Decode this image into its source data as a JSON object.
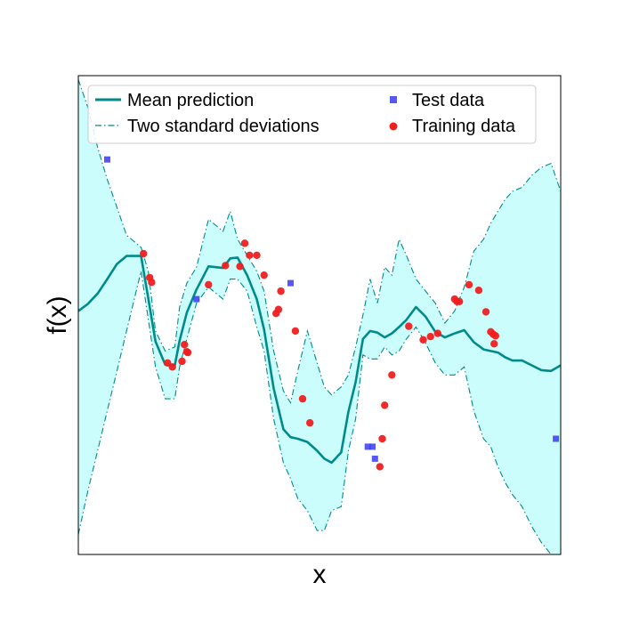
{
  "chart_data": {
    "type": "line",
    "title": "",
    "xlabel": "x",
    "ylabel": "f(x)",
    "xlim": [
      0,
      10
    ],
    "ylim": [
      -3,
      3
    ],
    "grid": false,
    "ticks_visible": false,
    "legend": {
      "placement": "top",
      "entries": [
        {
          "label": "Mean prediction",
          "style": "line",
          "color": "#008b8b"
        },
        {
          "label": "Two standard deviations",
          "style": "dashdot",
          "color": "#008b8b"
        },
        {
          "label": "Test data",
          "style": "square",
          "color": "#0000ff"
        },
        {
          "label": "Training data",
          "style": "circle",
          "color": "#ff0000"
        }
      ]
    },
    "colors": {
      "mean": "#008b8b",
      "band_fill": "#ccfdfd",
      "band_edge": "#008b8b",
      "test": "#3a3af5",
      "train": "#ef1f1f"
    },
    "series": [
      {
        "name": "Mean prediction",
        "x": [
          0.0,
          0.2,
          0.4,
          0.6,
          0.8,
          1.0,
          1.3,
          1.45,
          1.6,
          1.8,
          2.0,
          2.1,
          2.25,
          2.45,
          2.7,
          3.0,
          3.15,
          3.3,
          3.5,
          3.7,
          3.85,
          4.05,
          4.25,
          4.4,
          4.55,
          4.75,
          4.95,
          5.1,
          5.25,
          5.45,
          5.6,
          5.75,
          5.9,
          6.05,
          6.2,
          6.35,
          6.5,
          6.65,
          6.8,
          7.0,
          7.2,
          7.4,
          7.6,
          7.8,
          8.0,
          8.2,
          8.4,
          8.55,
          8.7,
          8.85,
          9.0,
          9.2,
          9.4,
          9.6,
          9.8,
          10.0
        ],
        "y": [
          0.05,
          0.14,
          0.27,
          0.45,
          0.64,
          0.74,
          0.74,
          0.21,
          -0.33,
          -0.62,
          -0.63,
          -0.32,
          0.03,
          0.32,
          0.61,
          0.59,
          0.71,
          0.72,
          0.5,
          0.2,
          -0.18,
          -0.92,
          -1.43,
          -1.53,
          -1.55,
          -1.59,
          -1.7,
          -1.8,
          -1.85,
          -1.72,
          -1.21,
          -0.84,
          -0.3,
          -0.2,
          -0.22,
          -0.28,
          -0.23,
          -0.15,
          -0.06,
          0.1,
          -0.02,
          -0.21,
          -0.28,
          -0.23,
          -0.19,
          -0.34,
          -0.43,
          -0.45,
          -0.47,
          -0.53,
          -0.57,
          -0.57,
          -0.63,
          -0.69,
          -0.7,
          -0.63
        ]
      },
      {
        "name": "Two standard deviations",
        "x": [
          0.0,
          0.2,
          0.4,
          0.6,
          0.8,
          1.0,
          1.3,
          1.45,
          1.6,
          1.8,
          2.0,
          2.1,
          2.25,
          2.45,
          2.7,
          3.0,
          3.15,
          3.3,
          3.5,
          3.7,
          3.85,
          4.05,
          4.25,
          4.4,
          4.55,
          4.75,
          4.95,
          5.1,
          5.25,
          5.45,
          5.6,
          5.75,
          5.9,
          6.05,
          6.2,
          6.35,
          6.5,
          6.65,
          6.8,
          7.0,
          7.2,
          7.4,
          7.6,
          7.8,
          8.0,
          8.2,
          8.4,
          8.55,
          8.7,
          8.85,
          9.0,
          9.2,
          9.4,
          9.6,
          9.8,
          10.0
        ],
        "upper": [
          2.95,
          2.6,
          2.1,
          1.7,
          1.35,
          1.0,
          0.85,
          0.55,
          -0.2,
          -0.45,
          -0.4,
          0.1,
          0.4,
          0.6,
          1.2,
          1.05,
          1.3,
          0.95,
          0.75,
          0.55,
          0.3,
          -0.45,
          -0.95,
          -1.1,
          -0.7,
          -0.2,
          -0.6,
          -0.9,
          -1.0,
          -0.9,
          -0.75,
          -0.4,
          0.0,
          0.45,
          0.15,
          0.6,
          0.5,
          0.95,
          0.75,
          0.45,
          0.3,
          0.15,
          -0.1,
          0.05,
          0.35,
          0.8,
          0.95,
          1.15,
          1.3,
          1.45,
          1.55,
          1.6,
          1.75,
          1.85,
          1.9,
          1.55
        ],
        "lower": [
          -2.75,
          -2.2,
          -1.7,
          -1.2,
          -0.7,
          -0.2,
          0.55,
          -0.05,
          -0.65,
          -1.05,
          -1.05,
          -0.65,
          -0.3,
          0.15,
          0.35,
          0.2,
          0.45,
          0.45,
          0.3,
          -0.15,
          -0.45,
          -1.3,
          -1.85,
          -2.05,
          -2.3,
          -2.45,
          -2.7,
          -2.7,
          -2.45,
          -2.4,
          -1.7,
          -1.3,
          -0.5,
          -0.55,
          -0.55,
          -0.4,
          -0.5,
          -0.45,
          -0.3,
          -0.15,
          -0.35,
          -0.6,
          -0.75,
          -0.75,
          -0.65,
          -1.2,
          -1.55,
          -1.65,
          -1.9,
          -2.1,
          -2.25,
          -2.4,
          -2.65,
          -2.85,
          -3.0,
          -3.0
        ]
      },
      {
        "name": "Test data",
        "x": [
          0.6,
          2.45,
          4.4,
          6.0,
          6.1,
          6.15,
          9.9
        ],
        "y": [
          1.95,
          0.2,
          0.4,
          -1.65,
          -1.65,
          -1.8,
          -1.55
        ]
      },
      {
        "name": "Training data",
        "x": [
          1.35,
          1.48,
          1.52,
          1.85,
          1.95,
          2.15,
          2.2,
          2.27,
          2.25,
          2.7,
          3.05,
          3.35,
          3.45,
          3.55,
          3.7,
          3.85,
          4.1,
          4.15,
          4.2,
          4.5,
          4.65,
          4.8,
          6.25,
          6.3,
          6.35,
          6.5,
          6.85,
          7.15,
          7.3,
          7.45,
          7.8,
          7.85,
          7.9,
          8.1,
          8.3,
          8.45,
          8.55,
          8.6,
          8.65,
          8.62
        ],
        "y": [
          0.77,
          0.47,
          0.41,
          -0.6,
          -0.65,
          -0.58,
          -0.37,
          -0.47,
          -0.46,
          0.38,
          0.62,
          0.61,
          0.9,
          0.75,
          0.75,
          0.5,
          0.02,
          0.07,
          0.3,
          -0.2,
          -1.05,
          -1.35,
          -1.9,
          -1.55,
          -1.13,
          -0.75,
          -0.14,
          -0.31,
          -0.27,
          -0.23,
          0.2,
          0.17,
          0.17,
          0.38,
          0.31,
          0.04,
          -0.21,
          -0.24,
          -0.26,
          -0.36
        ]
      }
    ]
  }
}
